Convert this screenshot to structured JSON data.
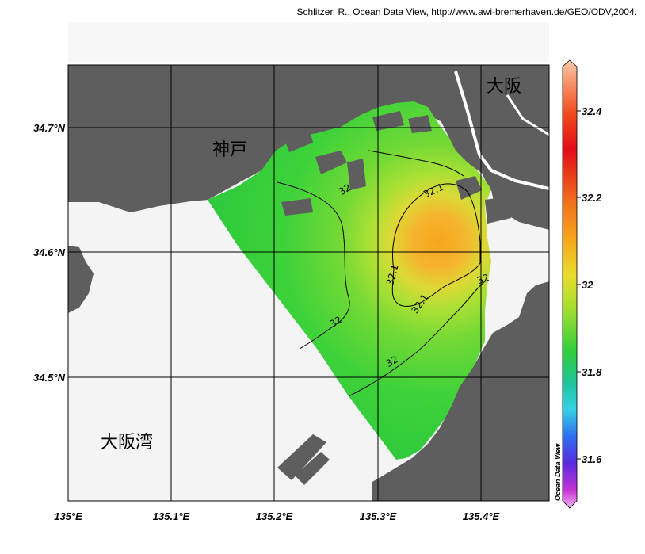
{
  "credit": "Schlitzer, R., Ocean Data View, http://www.awi-bremerhaven.de/GEO/ODV,2004.",
  "place_labels": {
    "osaka": "大阪",
    "kobe": "神戸",
    "osaka_bay": "大阪湾"
  },
  "colorbar": {
    "watermark": "Ocean Data View",
    "ticks": [
      "32.4",
      "32.2",
      "32",
      "31.8",
      "31.6"
    ]
  },
  "colors": {
    "land": "#5e5e5e",
    "no_data": "#f4f4f4",
    "grid": "#000000"
  },
  "chart_data": {
    "type": "heatmap",
    "title": "",
    "xlabel": "",
    "ylabel": "",
    "xlim": [
      135.0,
      135.4667
    ],
    "ylim": [
      34.4,
      34.75
    ],
    "x_ticks": [
      135.0,
      135.1,
      135.2,
      135.3,
      135.4
    ],
    "x_tick_labels": [
      "135°E",
      "135.1°E",
      "135.2°E",
      "135.3°E",
      "135.4°E"
    ],
    "y_ticks": [
      34.5,
      34.6,
      34.7
    ],
    "y_tick_labels": [
      "34.5°N",
      "34.6°N",
      "34.7°N"
    ],
    "grid": true,
    "colorscale": {
      "min": 31.5,
      "max": 32.5,
      "ticks": [
        32.4,
        32.2,
        32.0,
        31.8,
        31.6
      ]
    },
    "field_peak": {
      "lon": 135.355,
      "lat": 34.61,
      "value": 32.25
    },
    "contours": [
      {
        "label": "32.1",
        "label_position": {
          "lon": 135.357,
          "lat": 34.652
        }
      },
      {
        "label": "32.1",
        "label_position": {
          "lon": 135.312,
          "lat": 34.58
        }
      },
      {
        "label": "32.1",
        "label_position": {
          "lon": 135.335,
          "lat": 34.556
        }
      },
      {
        "label": "32",
        "label_position": {
          "lon": 135.265,
          "lat": 34.652
        }
      },
      {
        "label": "32",
        "label_position": {
          "lon": 135.258,
          "lat": 34.546
        }
      },
      {
        "label": "32",
        "label_position": {
          "lon": 135.314,
          "lat": 34.515
        }
      },
      {
        "label": "32",
        "label_position": {
          "lon": 135.407,
          "lat": 34.579
        }
      }
    ]
  }
}
